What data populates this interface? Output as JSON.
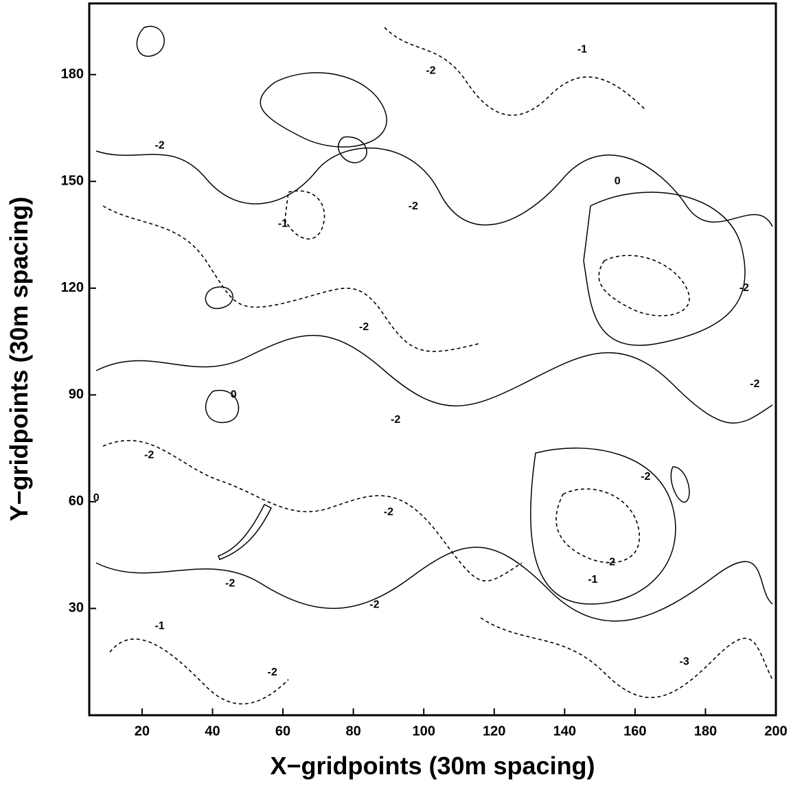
{
  "chart_data": {
    "type": "contour",
    "xlabel": "X−gridpoints (30m spacing)",
    "ylabel": "Y−gridpoints (30m spacing)",
    "xlim": [
      5,
      200
    ],
    "xticks": [
      20,
      40,
      60,
      80,
      100,
      120,
      140,
      160,
      180,
      200
    ],
    "ylim": [
      0,
      200
    ],
    "yticks": [
      30,
      60,
      90,
      120,
      150,
      180
    ],
    "contour_labels": [
      {
        "text": "0",
        "x": 155,
        "y": 150
      },
      {
        "text": "-1",
        "x": 145,
        "y": 187
      },
      {
        "text": "-2",
        "x": 102,
        "y": 181
      },
      {
        "text": "-2",
        "x": 25,
        "y": 160
      },
      {
        "text": "-2",
        "x": 97,
        "y": 143
      },
      {
        "text": "-1",
        "x": 60,
        "y": 138
      },
      {
        "text": "-2",
        "x": 191,
        "y": 120
      },
      {
        "text": "-2",
        "x": 83,
        "y": 109
      },
      {
        "text": "-2",
        "x": 194,
        "y": 93
      },
      {
        "text": "0",
        "x": 46,
        "y": 90
      },
      {
        "text": "-2",
        "x": 92,
        "y": 83
      },
      {
        "text": "-2",
        "x": 22,
        "y": 73
      },
      {
        "text": "-2",
        "x": 163,
        "y": 67
      },
      {
        "text": "-2",
        "x": 90,
        "y": 57
      },
      {
        "text": "-2",
        "x": 153,
        "y": 43
      },
      {
        "text": "-1",
        "x": 148,
        "y": 38
      },
      {
        "text": "-2",
        "x": 45,
        "y": 37
      },
      {
        "text": "-2",
        "x": 86,
        "y": 31
      },
      {
        "text": "-2",
        "x": 57,
        "y": 12
      },
      {
        "text": "-3",
        "x": 174,
        "y": 15
      },
      {
        "text": "-1",
        "x": 25,
        "y": 25
      },
      {
        "text": "0",
        "x": 7,
        "y": 61
      }
    ]
  }
}
